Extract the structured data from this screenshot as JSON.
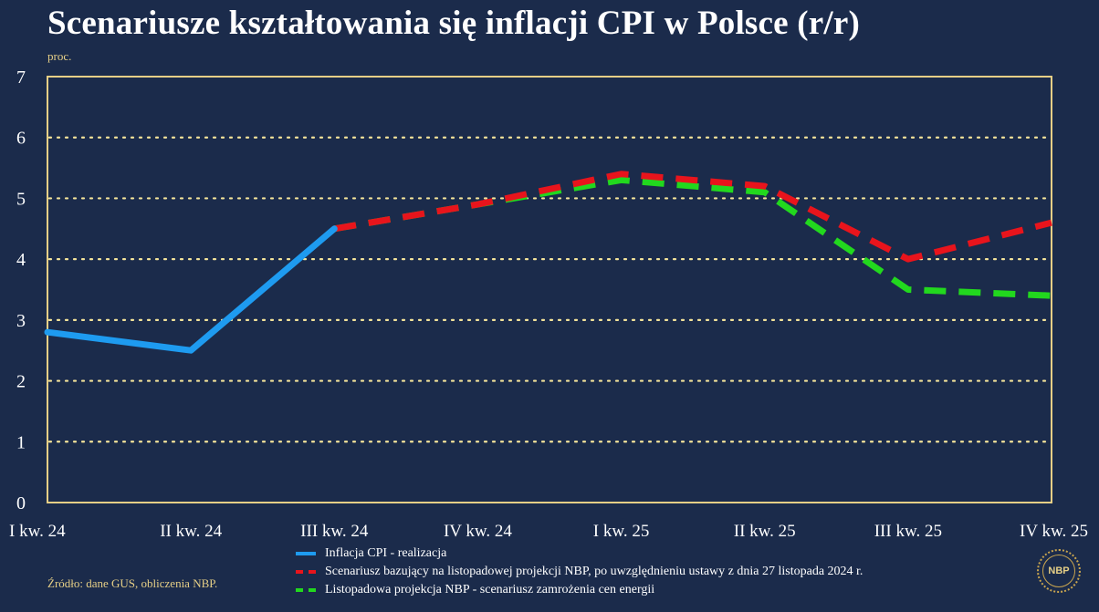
{
  "chart_data": {
    "type": "line",
    "title": "Scenariusze kształtowania się inflacji CPI w Polsce (r/r)",
    "ylabel": "proc.",
    "xlabel": "",
    "categories": [
      "I kw. 24",
      "II kw. 24",
      "III kw. 24",
      "IV kw. 24",
      "I kw. 25",
      "II kw. 25",
      "III kw. 25",
      "IV kw. 25"
    ],
    "ylim": [
      0,
      7
    ],
    "yticks": [
      0,
      1,
      2,
      3,
      4,
      5,
      6,
      7
    ],
    "grid": true,
    "series": [
      {
        "name": "Inflacja CPI - realizacja",
        "color": "#1e9bf0",
        "style": "solid",
        "values": [
          2.8,
          2.5,
          4.5,
          null,
          null,
          null,
          null,
          null
        ]
      },
      {
        "name": "Scenariusz bazujący na listopadowej projekcji NBP, po uwzględnieniu ustawy z dnia 27 listopada 2024 r.",
        "color": "#e8141c",
        "style": "dashed",
        "values": [
          null,
          null,
          4.5,
          4.9,
          5.4,
          5.2,
          4.0,
          4.6
        ]
      },
      {
        "name": "Listopadowa projekcja NBP - scenariusz zamrożenia cen energii",
        "color": "#22d81e",
        "style": "dashed",
        "values": [
          null,
          null,
          4.5,
          4.9,
          5.3,
          5.1,
          3.5,
          3.4
        ]
      }
    ]
  },
  "source": "Źródło: dane GUS, obliczenia NBP.",
  "logo_text": "NBP"
}
